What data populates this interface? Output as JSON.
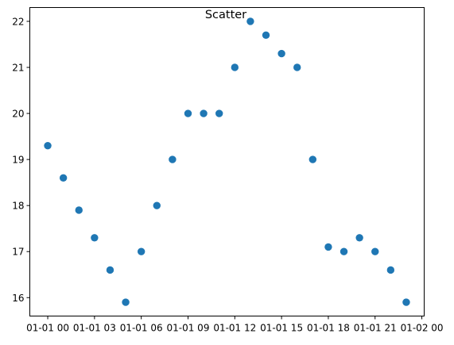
{
  "chart_data": {
    "type": "scatter",
    "title": "Scatter",
    "xlabel": "",
    "ylabel": "",
    "x": [
      0,
      1,
      2,
      3,
      4,
      5,
      6,
      7,
      8,
      9,
      10,
      11,
      12,
      13,
      14,
      15,
      16,
      17,
      18,
      19,
      20,
      21,
      22,
      23
    ],
    "y": [
      19.3,
      18.6,
      17.9,
      17.3,
      16.6,
      15.9,
      17.0,
      18.0,
      19.0,
      20.0,
      20.0,
      20.0,
      21.0,
      22.0,
      21.7,
      21.3,
      21.0,
      19.0,
      17.1,
      17.0,
      17.3,
      17.0,
      16.6,
      15.9
    ],
    "xlim": [
      -1.15,
      24.15
    ],
    "ylim": [
      15.6,
      22.3
    ],
    "x_ticks": [
      {
        "value": 0,
        "label": "01-01 00"
      },
      {
        "value": 3,
        "label": "01-01 03"
      },
      {
        "value": 6,
        "label": "01-01 06"
      },
      {
        "value": 9,
        "label": "01-01 09"
      },
      {
        "value": 12,
        "label": "01-01 12"
      },
      {
        "value": 15,
        "label": "01-01 15"
      },
      {
        "value": 18,
        "label": "01-01 18"
      },
      {
        "value": 21,
        "label": "01-01 21"
      },
      {
        "value": 24,
        "label": "01-02 00"
      }
    ],
    "y_ticks": [
      16,
      17,
      18,
      19,
      20,
      21,
      22
    ],
    "grid": false,
    "marker_color": "#1f77b4"
  }
}
